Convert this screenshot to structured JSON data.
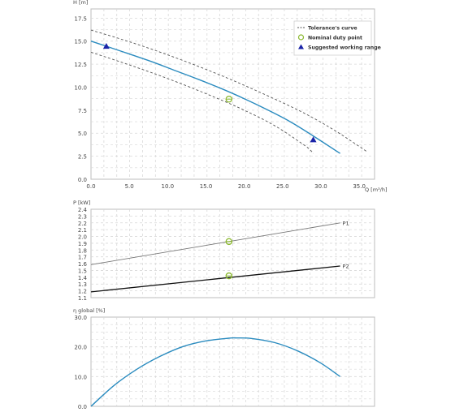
{
  "colors": {
    "main_curve": "#2a8bbf",
    "tolerance": "#555555",
    "p1_line": "#777777",
    "p2_line": "#111111",
    "duty_marker": "#8ab82e",
    "range_marker": "#1a23a8",
    "grid": "#d8d8d8",
    "frame": "#bdbdbd",
    "axis_text": "#444444"
  },
  "chart_data": [
    {
      "type": "line",
      "ylabel": "H [m]",
      "xlabel": "Q [m³/h]",
      "xlim": [
        0,
        37
      ],
      "ylim": [
        0,
        18.5
      ],
      "x_ticks": [
        "0.0",
        "5.0",
        "10.0",
        "15.0",
        "20.0",
        "25.0",
        "30.0",
        "35.0"
      ],
      "y_ticks": [
        "0.0",
        "2.5",
        "5.0",
        "7.5",
        "10.0",
        "12.5",
        "15.0",
        "17.5"
      ],
      "grid": true,
      "legend_placement": "top-right",
      "legend": [
        {
          "label": "Tolerance's curve",
          "symbol": "dashed-line"
        },
        {
          "label": "Nominal duty point",
          "symbol": "open-circle"
        },
        {
          "label": "Suggested working range",
          "symbol": "triangle"
        }
      ],
      "series": [
        {
          "role": "main",
          "x": [
            0,
            2,
            5,
            8,
            11,
            14,
            17,
            20,
            23,
            26,
            29,
            32.5
          ],
          "y": [
            15.0,
            14.45,
            13.6,
            12.75,
            11.8,
            10.85,
            9.85,
            8.75,
            7.55,
            6.25,
            4.7,
            2.8
          ]
        },
        {
          "role": "tolerance-upper",
          "x": [
            0,
            4,
            8,
            12,
            16,
            20,
            24,
            28,
            32,
            36
          ],
          "y": [
            16.2,
            15.2,
            14.1,
            12.9,
            11.6,
            10.2,
            8.7,
            7.1,
            5.2,
            3.0
          ]
        },
        {
          "role": "tolerance-lower",
          "x": [
            0,
            4,
            8,
            12,
            16,
            20,
            24,
            28,
            29
          ],
          "y": [
            13.8,
            12.7,
            11.55,
            10.3,
            8.95,
            7.5,
            5.8,
            3.6,
            2.8
          ]
        }
      ],
      "duty_point": {
        "x": 18.0,
        "y": 8.7
      },
      "working_range_points": [
        {
          "x": 2.0,
          "y": 14.45
        },
        {
          "x": 29.0,
          "y": 4.3
        }
      ]
    },
    {
      "type": "line",
      "ylabel": "P [kW]",
      "xlim": [
        0,
        37
      ],
      "ylim": [
        1.1,
        2.4
      ],
      "y_ticks": [
        "1.1",
        "1.2",
        "1.3",
        "1.4",
        "1.5",
        "1.6",
        "1.7",
        "1.8",
        "1.9",
        "2.0",
        "2.1",
        "2.2",
        "2.3",
        "2.4"
      ],
      "grid": true,
      "series": [
        {
          "name": "P1",
          "x": [
            0,
            32.5
          ],
          "y": [
            1.585,
            2.2
          ]
        },
        {
          "name": "P2",
          "x": [
            0,
            32.5
          ],
          "y": [
            1.185,
            1.565
          ]
        }
      ],
      "duty_points": [
        {
          "x": 18.0,
          "y": 1.925
        },
        {
          "x": 18.0,
          "y": 1.42
        }
      ]
    },
    {
      "type": "line",
      "ylabel": "η global [%]",
      "xlim": [
        0,
        37
      ],
      "ylim": [
        0,
        30
      ],
      "y_ticks": [
        "0.0",
        "10.0",
        "20.0",
        "30.0"
      ],
      "grid": true,
      "series": [
        {
          "role": "efficiency",
          "x": [
            0,
            3,
            6,
            9,
            12,
            15,
            18,
            19,
            21,
            24,
            27,
            30,
            32.5
          ],
          "y": [
            0.0,
            7.0,
            12.5,
            16.8,
            20.1,
            22.0,
            22.9,
            23.0,
            22.8,
            21.4,
            18.6,
            14.5,
            10.0
          ]
        }
      ]
    }
  ]
}
